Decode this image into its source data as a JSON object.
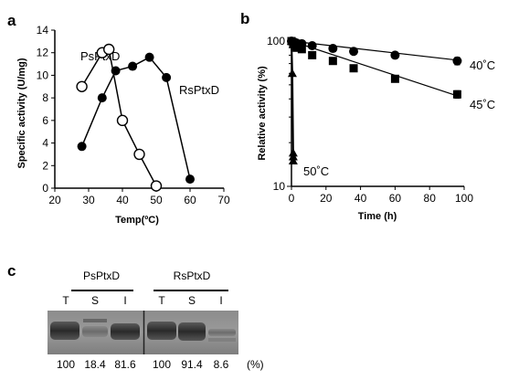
{
  "panel_a": {
    "letter": "a",
    "series_labels": [
      "PsPtxD",
      "RsPtxD"
    ]
  },
  "panel_b": {
    "letter": "b",
    "series_labels": [
      "40˚C",
      "45˚C",
      "50˚C"
    ]
  },
  "panel_c": {
    "letter": "c",
    "groups": [
      {
        "name": "PsPtxD",
        "lanes": [
          "T",
          "S",
          "I"
        ],
        "percents": [
          "100",
          "18.4",
          "81.6"
        ]
      },
      {
        "name": "RsPtxD",
        "lanes": [
          "T",
          "S",
          "I"
        ],
        "percents": [
          "100",
          "91.4",
          "8.6"
        ]
      }
    ],
    "unit": "(%)"
  },
  "chart_data": [
    {
      "type": "line",
      "panel": "a",
      "xlabel": "Temp(ºC)",
      "ylabel": "Specific activity (U/mg)",
      "xlim": [
        20,
        70
      ],
      "ylim": [
        0,
        14
      ],
      "xticks": [
        20,
        30,
        40,
        50,
        60,
        70
      ],
      "yticks": [
        0,
        2,
        4,
        6,
        8,
        10,
        12,
        14
      ],
      "grid": false,
      "series": [
        {
          "name": "PsPtxD",
          "marker": "open-circle",
          "x": [
            28,
            34,
            36,
            40,
            45,
            50
          ],
          "y": [
            9.0,
            12.0,
            12.3,
            6.0,
            3.0,
            0.2
          ]
        },
        {
          "name": "RsPtxD",
          "marker": "filled-circle",
          "x": [
            28,
            34,
            38,
            43,
            48,
            53,
            60
          ],
          "y": [
            3.7,
            8.0,
            10.4,
            10.8,
            11.6,
            9.8,
            0.8
          ]
        }
      ]
    },
    {
      "type": "line",
      "panel": "b",
      "xlabel": "Time (h)",
      "ylabel": "Relative activity (%)",
      "xlim": [
        0,
        100
      ],
      "ylim": [
        10,
        100
      ],
      "yscale": "log",
      "xticks": [
        0,
        20,
        40,
        60,
        80,
        100
      ],
      "yticks": [
        10,
        100
      ],
      "grid": false,
      "series": [
        {
          "name": "40˚C",
          "marker": "filled-circle",
          "x": [
            0,
            1,
            2,
            3,
            6,
            12,
            24,
            36,
            60,
            96
          ],
          "y": [
            100,
            99,
            98,
            97,
            96,
            93,
            89,
            85,
            80,
            73
          ],
          "fit_end": [
            96,
            74
          ]
        },
        {
          "name": "45˚C",
          "marker": "filled-square",
          "x": [
            0,
            1,
            2,
            3,
            6,
            12,
            24,
            36,
            60,
            96
          ],
          "y": [
            100,
            96,
            92,
            90,
            88,
            80,
            73,
            65,
            55,
            43
          ],
          "fit_end": [
            96,
            42
          ]
        },
        {
          "name": "50˚C",
          "marker": "filled-triangle",
          "x": [
            0,
            0.5,
            1,
            1,
            1
          ],
          "y": [
            100,
            60,
            17,
            16,
            15
          ]
        }
      ]
    }
  ]
}
